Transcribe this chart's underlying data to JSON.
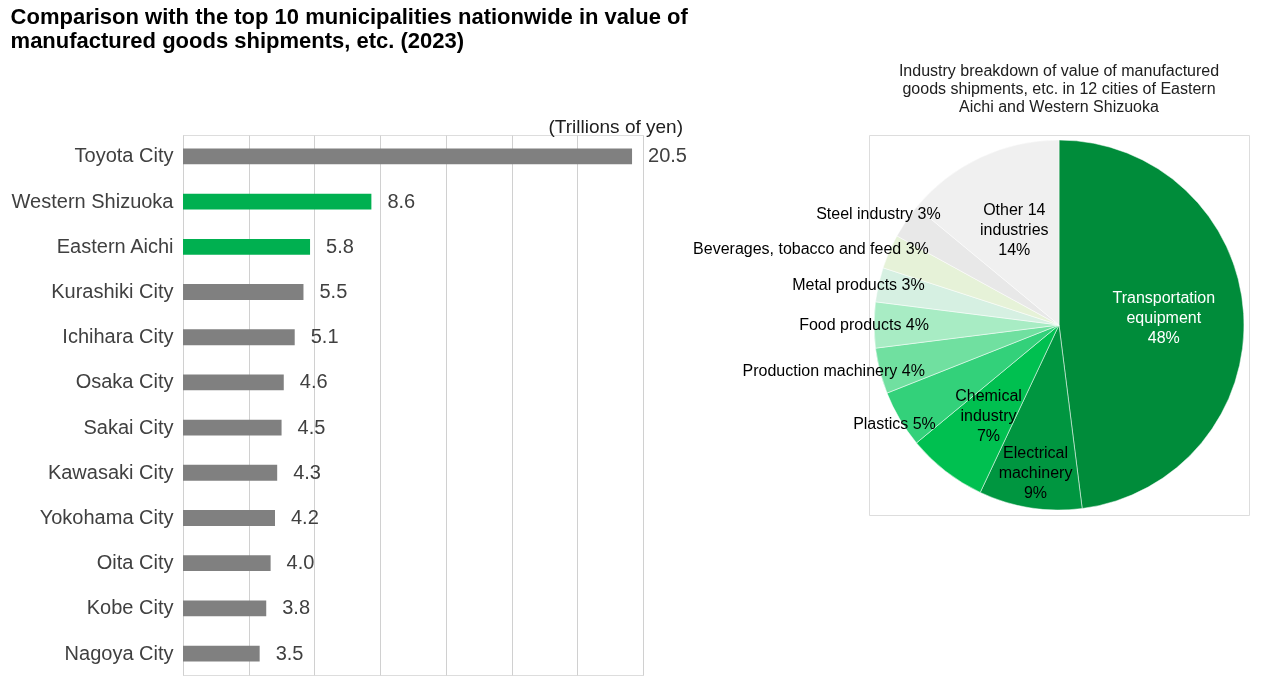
{
  "chart_data": [
    {
      "type": "bar",
      "orientation": "horizontal",
      "title": "Comparison with the top 10 municipalities nationwide in value of manufactured goods shipments, etc. (2023)",
      "annotations": [
        "(Trillions of yen)"
      ],
      "categories": [
        "Toyota City",
        "Western Shizuoka",
        "Eastern Aichi",
        "Kurashiki City",
        "Ichihara City",
        "Osaka City",
        "Sakai City",
        "Kawasaki City",
        "Yokohama City",
        "Oita City",
        "Kobe City",
        "Nagoya City"
      ],
      "values": [
        20.5,
        8.6,
        5.8,
        5.5,
        5.1,
        4.6,
        4.5,
        4.3,
        4.2,
        4.0,
        3.8,
        3.5
      ],
      "value_labels": [
        "20.5",
        "8.6",
        "5.8",
        "5.5",
        "5.1",
        "4.6",
        "4.5",
        "4.3",
        "4.2",
        "4.0",
        "3.8",
        "3.5"
      ],
      "colors": [
        "#808080",
        "#00b050",
        "#00b050",
        "#808080",
        "#808080",
        "#808080",
        "#808080",
        "#808080",
        "#808080",
        "#808080",
        "#808080",
        "#808080"
      ],
      "xlim": [
        0,
        21
      ],
      "xticks": [
        {
          "value": 0,
          "label": null
        },
        {
          "value": 3,
          "label": null
        },
        {
          "value": 6,
          "label": null
        },
        {
          "value": 9,
          "label": null
        },
        {
          "value": 12,
          "label": null
        },
        {
          "value": 15,
          "label": null
        },
        {
          "value": 18,
          "label": null
        },
        {
          "value": 21,
          "label": null
        }
      ],
      "grid": "x",
      "tick_labels": "y",
      "legend": false
    },
    {
      "type": "pie",
      "title": "Industry breakdown of value of manufactured goods shipments, etc. in 12 cities of Eastern Aichi and Western Shizuoka",
      "categories": [
        "Transportation equipment",
        "Electrical machinery",
        "Chemical industry",
        "Plastics",
        "Production machinery",
        "Food products",
        "Metal products",
        "Beverages, tobacco and  feed",
        "Steel industry",
        "Other 14 industries"
      ],
      "values": [
        48,
        9,
        7,
        5,
        4,
        4,
        3,
        3,
        3,
        14
      ],
      "value_labels": [
        "48%",
        "9%",
        "7%",
        "5%",
        "4%",
        "4%",
        "3%",
        "3%",
        "3%",
        "14%"
      ],
      "colors": [
        "#008c3a",
        "#009640",
        "#00c050",
        "#33d17a",
        "#70e0a0",
        "#a8ecc4",
        "#d6f0e2",
        "#e6f2d8",
        "#e8e8e8",
        "#f0f0f0"
      ],
      "legend": false
    }
  ]
}
